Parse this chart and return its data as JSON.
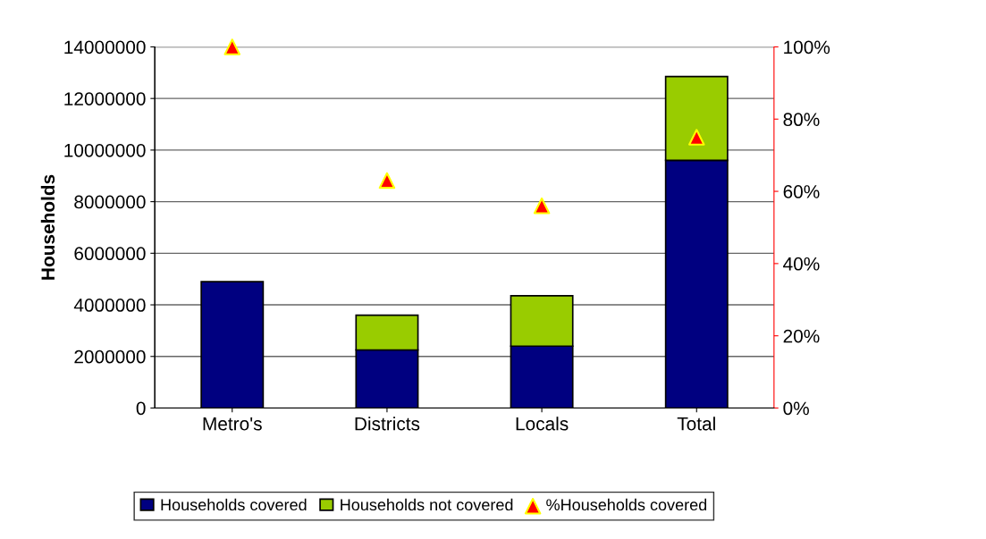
{
  "chart_data": {
    "type": "bar",
    "stacked": true,
    "ylabel": "Households",
    "categories": [
      "Metro's",
      "Districts",
      "Locals",
      "Total"
    ],
    "series": [
      {
        "name": "Households covered",
        "color": "#000080",
        "values": [
          4900000,
          2250000,
          2400000,
          9600000
        ]
      },
      {
        "name": "Households not covered",
        "color": "#99cc00",
        "values": [
          null,
          1350000,
          1950000,
          3250000
        ]
      },
      {
        "name": "%Households covered",
        "type": "scatter",
        "axis": "y2",
        "color": "#ff0000",
        "values": [
          100,
          63,
          56,
          75
        ]
      }
    ],
    "ylim": [
      0,
      14000000
    ],
    "yticks": [
      0,
      2000000,
      4000000,
      6000000,
      8000000,
      10000000,
      12000000,
      14000000
    ],
    "y2lim": [
      0,
      100
    ],
    "y2ticks": [
      {
        "value": 0,
        "label": "0%"
      },
      {
        "value": 20,
        "label": "20%"
      },
      {
        "value": 40,
        "label": "40%"
      },
      {
        "value": 60,
        "label": "60%"
      },
      {
        "value": 80,
        "label": "80%"
      },
      {
        "value": 100,
        "label": "100%"
      }
    ],
    "grid": "y",
    "legend": "bottom",
    "marker": "triangle"
  }
}
